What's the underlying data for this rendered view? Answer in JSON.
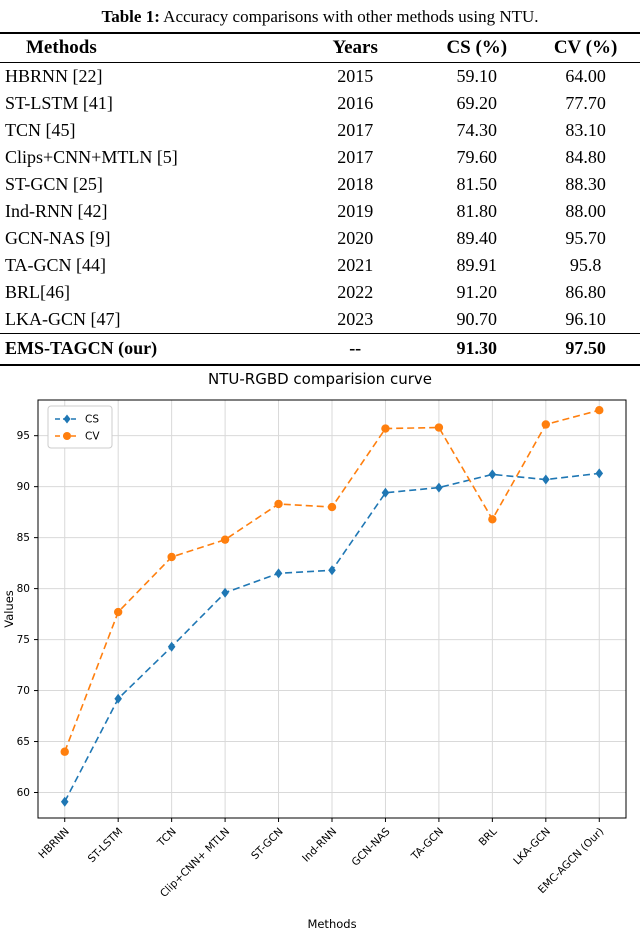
{
  "table": {
    "caption_label": "Table 1:",
    "caption_text": " Accuracy comparisons with other methods using NTU.",
    "columns": [
      "Methods",
      "Years",
      "CS (%)",
      "CV (%)"
    ],
    "rows": [
      {
        "method": "HBRNN [22]",
        "year": "2015",
        "cs": "59.10",
        "cv": "64.00",
        "bold": false
      },
      {
        "method": "ST-LSTM [41]",
        "year": "2016",
        "cs": "69.20",
        "cv": "77.70",
        "bold": false
      },
      {
        "method": "TCN [45]",
        "year": "2017",
        "cs": "74.30",
        "cv": "83.10",
        "bold": false
      },
      {
        "method": "Clips+CNN+MTLN  [5]",
        "year": "2017",
        "cs": "79.60",
        "cv": "84.80",
        "bold": false
      },
      {
        "method": "ST-GCN [25]",
        "year": "2018",
        "cs": "81.50",
        "cv": "88.30",
        "bold": false
      },
      {
        "method": "Ind-RNN [42]",
        "year": "2019",
        "cs": "81.80",
        "cv": "88.00",
        "bold": false
      },
      {
        "method": "GCN-NAS [9]",
        "year": "2020",
        "cs": "89.40",
        "cv": "95.70",
        "bold": false
      },
      {
        "method": "TA-GCN [44]",
        "year": "2021",
        "cs": "89.91",
        "cv": "95.8",
        "bold": false
      },
      {
        "method": "BRL[46]",
        "year": "2022",
        "cs": "91.20",
        "cv": "86.80",
        "bold": false
      },
      {
        "method": "LKA-GCN [47]",
        "year": "2023",
        "cs": "90.70",
        "cv": "96.10",
        "bold": false
      },
      {
        "method": "EMS-TAGCN (our)",
        "year": "--",
        "cs": "91.30",
        "cv": "97.50",
        "bold": true
      }
    ]
  },
  "chart_data": {
    "type": "line",
    "title": "NTU-RGBD comparision curve",
    "xlabel": "Methods",
    "ylabel": "Values",
    "categories": [
      "HBRNN",
      "ST-LSTM",
      "TCN",
      "Clip+CNN+ MTLN",
      "ST-GCN",
      "Ind-RNN",
      "GCN-NAS",
      "TA-GCN",
      "BRL",
      "LKA-GCN",
      "EMC-AGCN (Our)"
    ],
    "series": [
      {
        "name": "CS",
        "color": "#1f77b4",
        "marker": "diamond",
        "linestyle": "dashed",
        "values": [
          59.1,
          69.2,
          74.3,
          79.6,
          81.5,
          81.8,
          89.4,
          89.91,
          91.2,
          90.7,
          91.3
        ]
      },
      {
        "name": "CV",
        "color": "#ff7f0e",
        "marker": "circle",
        "linestyle": "dashed",
        "values": [
          64.0,
          77.7,
          83.1,
          84.8,
          88.3,
          88.0,
          95.7,
          95.8,
          86.8,
          96.1,
          97.5
        ]
      }
    ],
    "yticks": [
      60,
      65,
      70,
      75,
      80,
      85,
      90,
      95
    ],
    "ylim": [
      57.5,
      98.5
    ],
    "grid": true,
    "legend_position": "upper-left",
    "grid_color": "#d9d9d9"
  }
}
